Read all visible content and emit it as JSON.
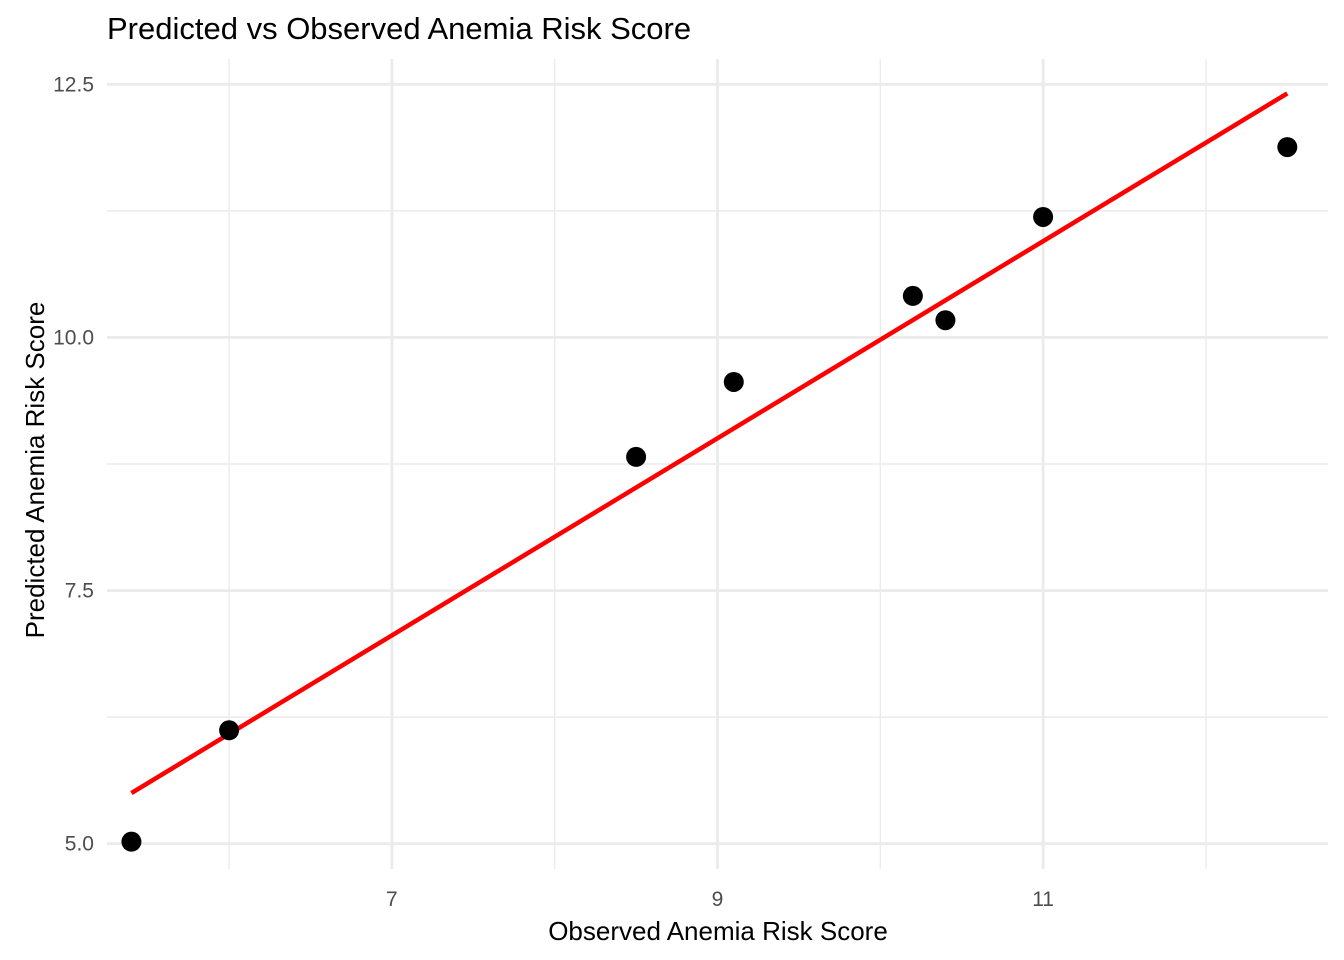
{
  "chart_data": {
    "type": "scatter",
    "title": "Predicted vs Observed Anemia Risk Score",
    "xlabel": "Observed Anemia Risk Score",
    "ylabel": "Predicted Anemia Risk Score",
    "xlim": [
      5.25,
      12.75
    ],
    "ylim": [
      4.75,
      12.75
    ],
    "x_major_ticks": [
      7,
      9,
      11
    ],
    "x_minor_ticks": [
      6,
      8,
      10,
      12
    ],
    "y_major_ticks": [
      5.0,
      7.5,
      10.0,
      12.5
    ],
    "y_minor_ticks": [
      6.25,
      8.75,
      11.25
    ],
    "x_tick_labels": [
      "7",
      "9",
      "11"
    ],
    "y_tick_labels": [
      "5.0",
      "7.5",
      "10.0",
      "12.5"
    ],
    "grid": true,
    "series": [
      {
        "type": "scatter",
        "color": "#000000",
        "points": [
          {
            "x": 5.4,
            "y": 5.02
          },
          {
            "x": 6.0,
            "y": 6.12
          },
          {
            "x": 8.5,
            "y": 8.82
          },
          {
            "x": 9.1,
            "y": 9.56
          },
          {
            "x": 10.2,
            "y": 10.41
          },
          {
            "x": 10.4,
            "y": 10.17
          },
          {
            "x": 11.0,
            "y": 11.19
          },
          {
            "x": 12.5,
            "y": 11.88
          }
        ]
      },
      {
        "type": "line",
        "color": "#ff0000",
        "points": [
          {
            "x": 5.4,
            "y": 5.5
          },
          {
            "x": 12.5,
            "y": 12.41
          }
        ]
      }
    ]
  }
}
